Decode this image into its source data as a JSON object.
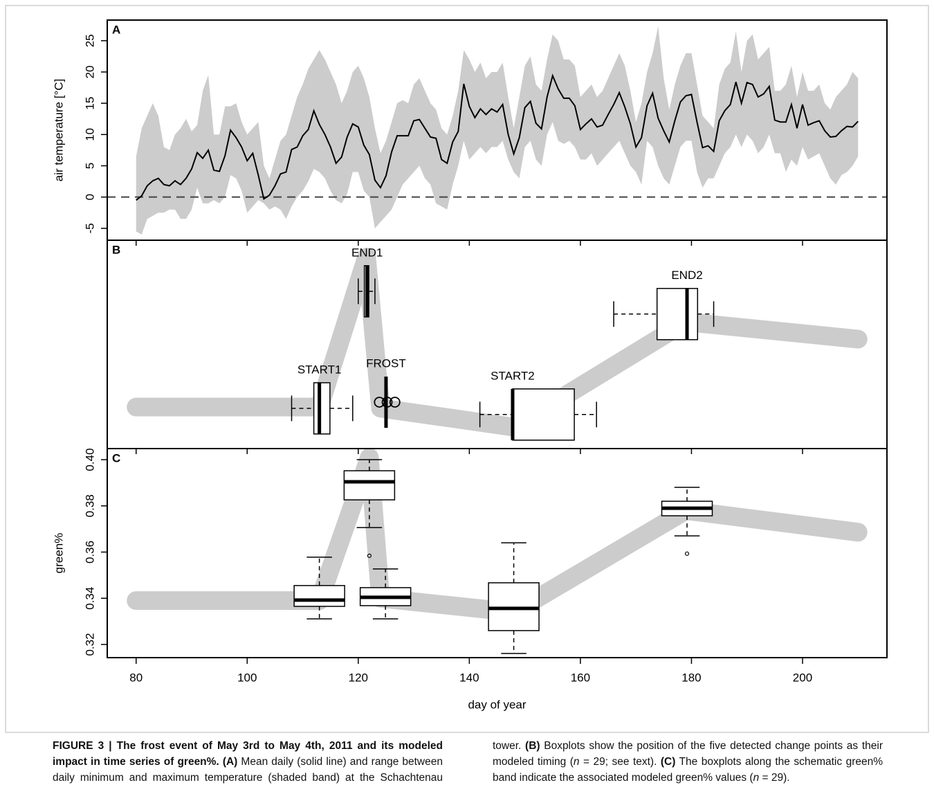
{
  "chart_data": [
    {
      "type": "line",
      "label": "A",
      "ylabel": "air temperature [°C]",
      "xlim": [
        74.8,
        215.2
      ],
      "ylim": [
        -6.9,
        28.3
      ],
      "yticks": [
        -5,
        0,
        5,
        10,
        15,
        20,
        25
      ],
      "reference_line": 0,
      "x": [
        80,
        81,
        82,
        83,
        84,
        85,
        86,
        87,
        88,
        89,
        90,
        91,
        92,
        93,
        94,
        95,
        96,
        97,
        98,
        99,
        100,
        101,
        102,
        103,
        104,
        105,
        106,
        107,
        108,
        109,
        110,
        111,
        112,
        113,
        114,
        115,
        116,
        117,
        118,
        119,
        120,
        121,
        122,
        123,
        124,
        125,
        126,
        127,
        128,
        129,
        130,
        131,
        132,
        133,
        134,
        135,
        136,
        137,
        138,
        139,
        140,
        141,
        142,
        143,
        144,
        145,
        146,
        147,
        148,
        149,
        150,
        151,
        152,
        153,
        154,
        155,
        156,
        157,
        158,
        159,
        160,
        161,
        162,
        163,
        164,
        165,
        166,
        167,
        168,
        169,
        170,
        171,
        172,
        173,
        174,
        175,
        176,
        177,
        178,
        179,
        180,
        181,
        182,
        183,
        184,
        185,
        186,
        187,
        188,
        189,
        190,
        191,
        192,
        193,
        194,
        195,
        196,
        197,
        198,
        199,
        200,
        201,
        202,
        203,
        204,
        205,
        206,
        207,
        208,
        209,
        210
      ],
      "series": [
        {
          "color": "#000000",
          "values": [
            -0.5,
            0.2,
            1.8,
            2.6,
            3.0,
            2.0,
            1.8,
            2.6,
            2.0,
            3.0,
            4.5,
            7.1,
            6.2,
            7.5,
            4.3,
            4.1,
            6.6,
            10.7,
            9.5,
            8.0,
            5.8,
            7.0,
            3.5,
            -0.3,
            0.3,
            1.8,
            3.7,
            4.0,
            7.6,
            8.0,
            9.8,
            10.8,
            13.8,
            11.6,
            10.0,
            8.0,
            5.4,
            6.4,
            9.6,
            11.7,
            11.2,
            8.3,
            6.8,
            2.7,
            1.5,
            3.4,
            7.2,
            9.8,
            9.8,
            9.8,
            12.2,
            12.4,
            11.0,
            9.6,
            9.4,
            6.0,
            5.4,
            8.8,
            10.5,
            18.1,
            14.5,
            12.7,
            14.1,
            13.2,
            14.1,
            13.6,
            14.8,
            10.0,
            6.9,
            9.5,
            14.3,
            15.3,
            11.8,
            10.9,
            16.0,
            19.4,
            17.3,
            15.8,
            15.8,
            14.6,
            10.8,
            11.7,
            12.5,
            11.2,
            11.5,
            13.2,
            14.8,
            16.7,
            14.4,
            11.7,
            8.0,
            9.5,
            14.6,
            16.6,
            12.6,
            10.6,
            8.8,
            12.2,
            15.2,
            16.2,
            16.4,
            12.0,
            7.9,
            8.2,
            7.3,
            12.2,
            13.8,
            14.8,
            18.4,
            15.0,
            18.3,
            18.0,
            16.0,
            16.5,
            17.7,
            12.3,
            12.0,
            12.0,
            14.8,
            11.0,
            14.8,
            11.5,
            11.9,
            12.2,
            10.6,
            9.6,
            9.7,
            10.6,
            11.3,
            11.2,
            12.1
          ]
        }
      ],
      "band": {
        "color": "#cccccc",
        "high": [
          6.5,
          11,
          13,
          15,
          13,
          8,
          7.5,
          10,
          11,
          12.5,
          10.5,
          11.5,
          17,
          19.5,
          10,
          10,
          14.5,
          14.5,
          15,
          12,
          10,
          11,
          12,
          5,
          3,
          6,
          9,
          10,
          13,
          16,
          18,
          20.5,
          22,
          23.5,
          22,
          20,
          18,
          15,
          17,
          20,
          21,
          19,
          16,
          11,
          7,
          9,
          12,
          15,
          15.5,
          15,
          18,
          19,
          17,
          15,
          14,
          11,
          10,
          13,
          17,
          23.5,
          22,
          20,
          21.5,
          19,
          20,
          20,
          21.5,
          16,
          11,
          16,
          21,
          22.5,
          18,
          17,
          22,
          26,
          25,
          22,
          22,
          21,
          16,
          17,
          18,
          16,
          17,
          19,
          21,
          23,
          21,
          17,
          12,
          15,
          20,
          23,
          27.3,
          19,
          14,
          18,
          21,
          23,
          23,
          18,
          13,
          12,
          11,
          18,
          20.5,
          21.5,
          26.5,
          20,
          25,
          26,
          22,
          23,
          24,
          17,
          17,
          18,
          21,
          16,
          20,
          17,
          17,
          18,
          15,
          14,
          16,
          17,
          18,
          20,
          19
        ],
        "low": [
          -5.5,
          -6,
          -3.5,
          -3,
          -2.5,
          -2.5,
          -2,
          -2,
          -3.5,
          -3.5,
          -2,
          1.5,
          -1,
          -1,
          -0.5,
          -1,
          0,
          3.5,
          3,
          1,
          -2.5,
          -1.5,
          -0.5,
          -1,
          -2,
          -1.5,
          -2,
          -3.5,
          -1.5,
          0,
          1,
          2.5,
          4.5,
          4,
          3,
          1,
          -0.5,
          -1,
          0.5,
          4,
          4,
          1,
          0,
          -5,
          -4,
          -3,
          -2,
          0,
          2,
          3,
          4,
          5,
          3,
          2,
          -1,
          -1.5,
          -2,
          2,
          5,
          9,
          6,
          7,
          8,
          7,
          8,
          8,
          9,
          6,
          4,
          3,
          8,
          9,
          6,
          5,
          10,
          12,
          9,
          8.5,
          9,
          8,
          6,
          6,
          7,
          5,
          6,
          7,
          8,
          9,
          7,
          5,
          4,
          2,
          9,
          8,
          5,
          3,
          2,
          5,
          8,
          9,
          9,
          4,
          1.5,
          3,
          3,
          5,
          7,
          8,
          10,
          8,
          10,
          9,
          7,
          8,
          10,
          7,
          7,
          4,
          6,
          5,
          8,
          6,
          6.5,
          7,
          5,
          3,
          2,
          3.5,
          4,
          5,
          6.5
        ]
      }
    },
    {
      "type": "boxplot",
      "orientation": "horizontal",
      "label": "B",
      "xlim": [
        74.8,
        215.2
      ],
      "ylim": [
        0.3195,
        0.4174
      ],
      "band": {
        "color": "#cccccc",
        "x": [
          80,
          113,
          121.5,
          124,
          148,
          179,
          210
        ],
        "values": [
          0.339,
          0.339,
          0.4095,
          0.3385,
          0.3296,
          0.379,
          0.3709
        ]
      },
      "boxes": [
        {
          "name": "START1",
          "level": 0.3384,
          "whisker_low": 108,
          "q1": 112,
          "median": 113,
          "q3": 114.9,
          "whisker_high": 119,
          "outliers": []
        },
        {
          "name": "END1",
          "level": 0.3934,
          "whisker_low": 120,
          "q1": 121.1,
          "median": 121.6,
          "q3": 121.9,
          "whisker_high": 123,
          "outliers": []
        },
        {
          "name": "FROST",
          "level": 0.3413,
          "whisker_low": 125,
          "q1": 125,
          "median": 125,
          "q3": 125,
          "whisker_high": 125,
          "outliers": [
            123.8,
            125.2,
            126.6
          ]
        },
        {
          "name": "START2",
          "level": 0.3355,
          "whisker_low": 141.9,
          "q1": 147.8,
          "median": 147.8,
          "q3": 158.9,
          "whisker_high": 162.9,
          "outliers": []
        },
        {
          "name": "END2",
          "level": 0.3827,
          "whisker_low": 166,
          "q1": 173.8,
          "median": 179.2,
          "q3": 181.1,
          "whisker_high": 184,
          "outliers": []
        }
      ]
    },
    {
      "type": "boxplot",
      "orientation": "vertical",
      "label": "C",
      "ylabel": "green%",
      "xlabel": "day of year",
      "xlim": [
        74.8,
        215.2
      ],
      "xticks": [
        80,
        100,
        120,
        140,
        160,
        180,
        200
      ],
      "ylim": [
        0.3143,
        0.4048
      ],
      "yticks": [
        0.32,
        0.34,
        0.36,
        0.38,
        {
          "value": 0.4,
          "label": "0.40"
        }
      ],
      "band": {
        "color": "#cccccc",
        "x": [
          80,
          113,
          122,
          124,
          148,
          179,
          210
        ],
        "values": [
          0.339,
          0.339,
          0.401,
          0.34,
          0.334,
          0.378,
          0.3686
        ]
      },
      "boxes": [
        {
          "x": 113,
          "whisker_low": 0.3311,
          "q1": 0.3365,
          "median": 0.3392,
          "q3": 0.3455,
          "whisker_high": 0.3578,
          "outliers": []
        },
        {
          "x": 122,
          "whisker_low": 0.3706,
          "q1": 0.3826,
          "median": 0.3904,
          "q3": 0.3952,
          "whisker_high": 0.4,
          "outliers": [
            0.3584
          ]
        },
        {
          "x": 124.9,
          "whisker_low": 0.3311,
          "q1": 0.3368,
          "median": 0.3404,
          "q3": 0.3446,
          "whisker_high": 0.3527,
          "outliers": []
        },
        {
          "x": 148,
          "whisker_low": 0.3161,
          "q1": 0.326,
          "median": 0.3356,
          "q3": 0.3467,
          "whisker_high": 0.364,
          "outliers": []
        },
        {
          "x": 179.2,
          "whisker_low": 0.367,
          "q1": 0.3757,
          "median": 0.379,
          "q3": 0.382,
          "whisker_high": 0.388,
          "outliers": [
            0.3593
          ]
        }
      ]
    }
  ],
  "caption": {
    "parts": [
      {
        "text": "FIGURE 3 | The frost event of May 3rd to May 4th, 2011 and its modeled impact in time series of green%.",
        "bold": true
      },
      {
        "text": " "
      },
      {
        "text": "(A)",
        "bold": true
      },
      {
        "text": " Mean daily (solid line) and range between daily minimum and maximum temperature (shaded band) at the Schachtenau tower. "
      },
      {
        "text": "(B)",
        "bold": true
      },
      {
        "text": " Boxplots show the position of the five detected change points as their modeled timing ("
      },
      {
        "text": "n",
        "italic": true
      },
      {
        "text": " = 29; see text). "
      },
      {
        "text": "(C)",
        "bold": true
      },
      {
        "text": " The boxplots along the schematic green% band indicate the associated modeled green% values ("
      },
      {
        "text": "n",
        "italic": true
      },
      {
        "text": " = 29)."
      }
    ]
  }
}
